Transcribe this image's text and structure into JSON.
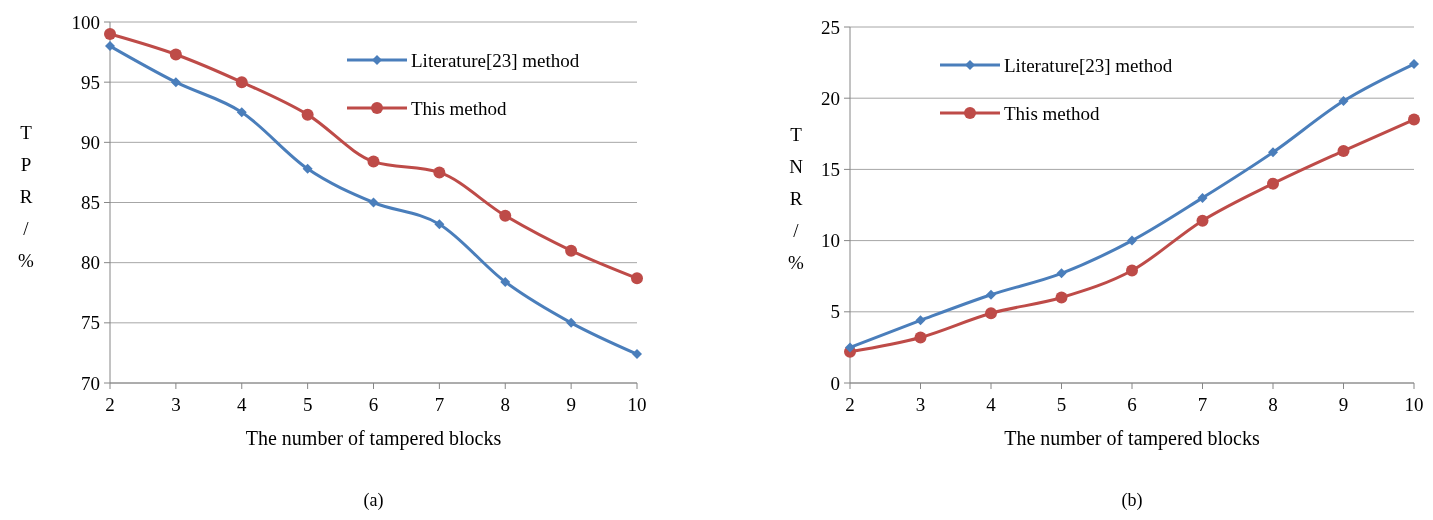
{
  "chart_data": [
    {
      "type": "line",
      "xlabel": "The number of tampered blocks",
      "ylabel": "TPR/%",
      "categories": [
        "2",
        "3",
        "4",
        "5",
        "6",
        "7",
        "8",
        "9",
        "10"
      ],
      "ylim": [
        70,
        100
      ],
      "yticks": [
        70,
        75,
        80,
        85,
        90,
        95,
        100
      ],
      "grid": "y",
      "legend": "top right",
      "annotations": [
        "(a)"
      ],
      "series": [
        {
          "name": "Literature[23] method",
          "color": "#4a7ebb",
          "marker": "diamond",
          "values": [
            98,
            95,
            92.5,
            87.8,
            85,
            83.2,
            78.4,
            75,
            72.4
          ]
        },
        {
          "name": "This method",
          "color": "#be4b48",
          "marker": "circle",
          "values": [
            99,
            97.3,
            95,
            92.3,
            88.4,
            87.5,
            83.9,
            81,
            78.7
          ]
        }
      ]
    },
    {
      "type": "line",
      "xlabel": "The number of tampered blocks",
      "ylabel": "TNR/%",
      "categories": [
        "2",
        "3",
        "4",
        "5",
        "6",
        "7",
        "8",
        "9",
        "10"
      ],
      "ylim": [
        0,
        25
      ],
      "yticks": [
        0,
        5,
        10,
        15,
        20,
        25
      ],
      "grid": "y",
      "legend": "top left",
      "annotations": [
        "(b)"
      ],
      "series": [
        {
          "name": "Literature[23] method",
          "color": "#4a7ebb",
          "marker": "diamond",
          "values": [
            2.5,
            4.4,
            6.2,
            7.7,
            10,
            13,
            16.2,
            19.8,
            22.4
          ]
        },
        {
          "name": "This method",
          "color": "#be4b48",
          "marker": "circle",
          "values": [
            2.2,
            3.2,
            4.9,
            6,
            7.9,
            11.4,
            14,
            16.3,
            18.5
          ]
        }
      ]
    }
  ]
}
